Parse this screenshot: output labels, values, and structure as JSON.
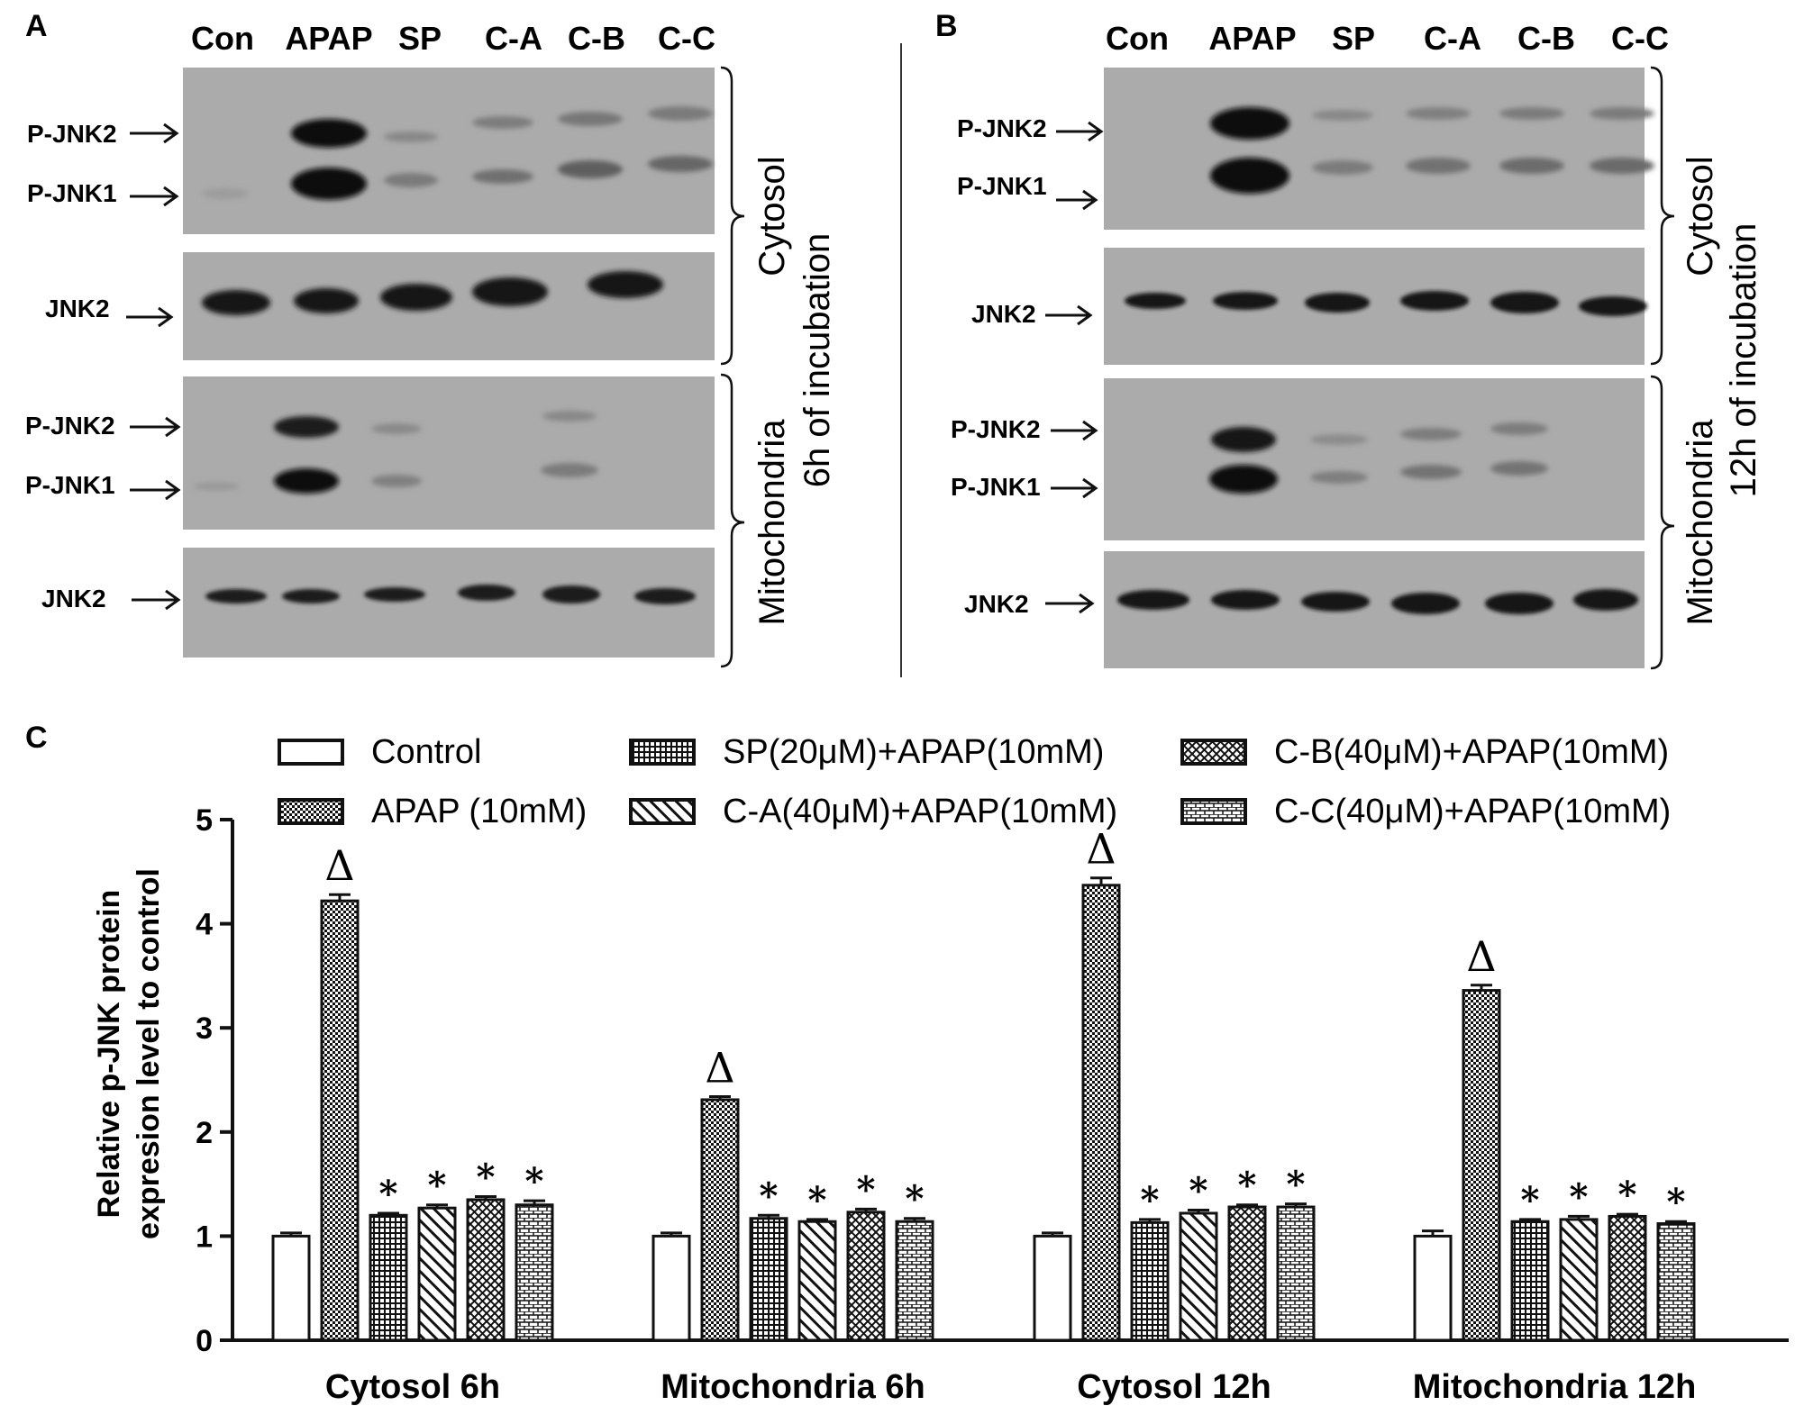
{
  "panels": {
    "a": {
      "letter": "A",
      "lanes": [
        "Con",
        "APAP",
        "SP",
        "C-A",
        "C-B",
        "C-C"
      ],
      "labels": [
        "P-JNK2",
        "P-JNK1",
        "JNK2",
        "P-JNK2",
        "P-JNK1",
        "JNK2"
      ],
      "bracket_cytosol": "Cytosol",
      "bracket_mito": "Mitochondria",
      "side_title": "6h of incubation"
    },
    "b": {
      "letter": "B",
      "lanes": [
        "Con",
        "APAP",
        "SP",
        "C-A",
        "C-B",
        "C-C"
      ],
      "labels": [
        "P-JNK2",
        "P-JNK1",
        "JNK2",
        "P-JNK2",
        "P-JNK1",
        "JNK2"
      ],
      "bracket_cytosol": "Cytosol",
      "bracket_mito": "Mitochondria",
      "side_title": "12h of incubation"
    },
    "c": {
      "letter": "C"
    }
  },
  "colors": {
    "blot_bg": "#a9a9a9",
    "band": "#141414",
    "bar_fill": "#ffffff",
    "ink": "#111111"
  },
  "chart_data": {
    "type": "bar",
    "categories": [
      "Cytosol 6h",
      "Mitochondria 6h",
      "Cytosol 12h",
      "Mitochondria 12h"
    ],
    "ylabel": "Relative p-JNK protein expresion level to control",
    "ylim": [
      0,
      5
    ],
    "yticks": [
      "0",
      "1",
      "2",
      "3",
      "4",
      "5"
    ],
    "legend_position": "top",
    "series": [
      {
        "name": "Control",
        "pattern": "none",
        "values": [
          1.0,
          1.0,
          1.0,
          1.0
        ],
        "errors": [
          0.03,
          0.03,
          0.03,
          0.05
        ],
        "marks": [
          "",
          "",
          "",
          ""
        ]
      },
      {
        "name": "APAP (10mM)",
        "pattern": "dense",
        "values": [
          4.22,
          2.31,
          4.37,
          3.36
        ],
        "errors": [
          0.06,
          0.03,
          0.07,
          0.05
        ],
        "marks": [
          "Δ",
          "Δ",
          "Δ",
          "Δ"
        ]
      },
      {
        "name": "SP(20μM)+APAP(10mM)",
        "pattern": "dots",
        "values": [
          1.2,
          1.17,
          1.13,
          1.14
        ],
        "errors": [
          0.02,
          0.03,
          0.03,
          0.02
        ],
        "marks": [
          "*",
          "*",
          "*",
          "*"
        ]
      },
      {
        "name": "C-A(40μM)+APAP(10mM)",
        "pattern": "diag",
        "values": [
          1.27,
          1.14,
          1.22,
          1.16
        ],
        "errors": [
          0.03,
          0.02,
          0.03,
          0.03
        ],
        "marks": [
          "*",
          "*",
          "*",
          "*"
        ]
      },
      {
        "name": "C-B(40μM)+APAP(10mM)",
        "pattern": "cross",
        "values": [
          1.35,
          1.23,
          1.28,
          1.19
        ],
        "errors": [
          0.03,
          0.03,
          0.02,
          0.02
        ],
        "marks": [
          "*",
          "*",
          "*",
          "*"
        ]
      },
      {
        "name": "C-C(40μM)+APAP(10mM)",
        "pattern": "brick",
        "values": [
          1.3,
          1.14,
          1.28,
          1.12
        ],
        "errors": [
          0.04,
          0.03,
          0.03,
          0.02
        ],
        "marks": [
          "*",
          "*",
          "*",
          "*"
        ]
      }
    ]
  }
}
